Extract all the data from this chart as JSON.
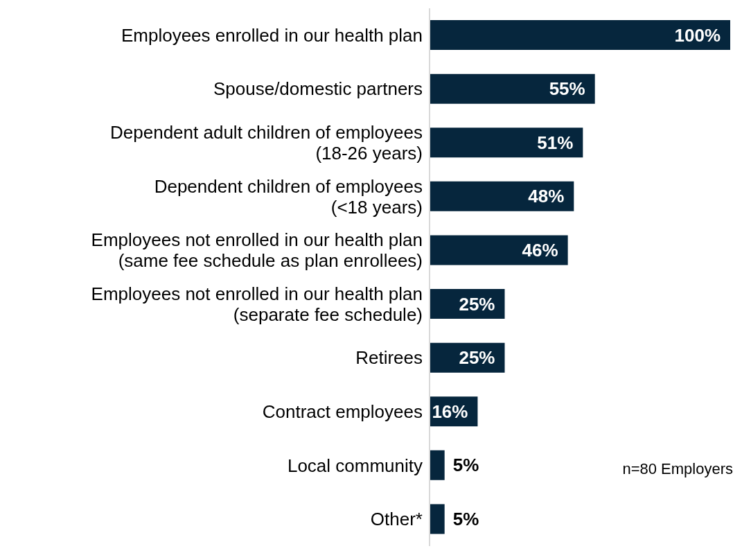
{
  "chart_data": {
    "type": "bar",
    "orientation": "horizontal",
    "categories": [
      "Employees enrolled in our health plan",
      "Spouse/domestic partners",
      "Dependent adult children of employees\n(18-26 years)",
      "Dependent children of employees\n(<18 years)",
      "Employees not enrolled in our health plan\n(same fee schedule as plan enrollees)",
      "Employees not enrolled in our health plan\n(separate fee schedule)",
      "Retirees",
      "Contract employees",
      "Local community",
      "Other*"
    ],
    "values": [
      100,
      55,
      51,
      48,
      46,
      25,
      25,
      16,
      5,
      5
    ],
    "value_labels": [
      "100%",
      "55%",
      "51%",
      "48%",
      "46%",
      "25%",
      "25%",
      "16%",
      "5%",
      "5%"
    ],
    "color": "#06263d",
    "annotations": [
      "n=80 Employers"
    ]
  }
}
